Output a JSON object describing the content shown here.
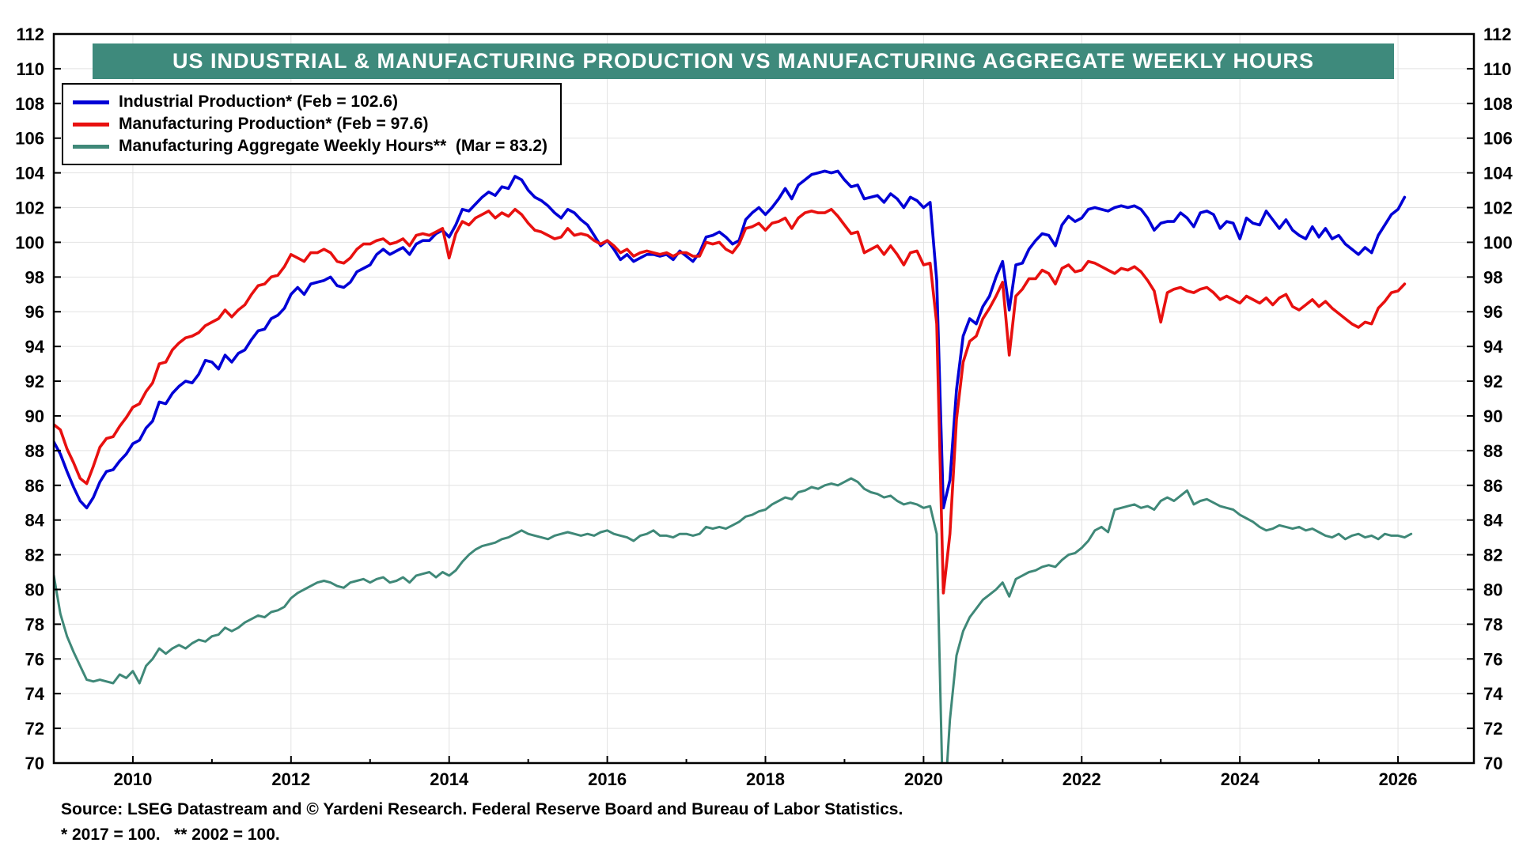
{
  "chart_data": {
    "type": "line",
    "title": "US INDUSTRIAL & MANUFACTURING PRODUCTION VS MANUFACTURING AGGREGATE WEEKLY HOURS",
    "xaxis": {
      "min": 2009.0,
      "max": 2026.96,
      "major_ticks": [
        2010,
        2012,
        2014,
        2016,
        2018,
        2020,
        2022,
        2024,
        2026
      ],
      "minor_step": 1
    },
    "yaxis": {
      "min": 70,
      "max": 112,
      "tick_step": 2
    },
    "grid": {
      "show": true,
      "color": "#e2e2e2"
    },
    "legend_position": "top-left",
    "series": [
      {
        "name": "industrial_production",
        "label": "Industrial Production* (Feb = 102.6)",
        "color": "#0000d6",
        "width": 3.6,
        "start": 2009.0,
        "frequency": "monthly",
        "latest": {
          "period": "Feb",
          "value": 102.6
        },
        "values": [
          88.5,
          87.8,
          86.8,
          85.9,
          85.1,
          84.7,
          85.3,
          86.2,
          86.8,
          86.9,
          87.4,
          87.8,
          88.4,
          88.6,
          89.3,
          89.7,
          90.8,
          90.7,
          91.3,
          91.7,
          92.0,
          91.9,
          92.4,
          93.2,
          93.1,
          92.7,
          93.5,
          93.1,
          93.6,
          93.8,
          94.4,
          94.9,
          95.0,
          95.6,
          95.8,
          96.2,
          97.0,
          97.4,
          97.0,
          97.6,
          97.7,
          97.8,
          98.0,
          97.5,
          97.4,
          97.7,
          98.3,
          98.5,
          98.7,
          99.3,
          99.6,
          99.3,
          99.5,
          99.7,
          99.3,
          99.9,
          100.1,
          100.1,
          100.5,
          100.7,
          100.3,
          101.0,
          101.9,
          101.8,
          102.2,
          102.6,
          102.9,
          102.7,
          103.2,
          103.1,
          103.8,
          103.6,
          103.0,
          102.6,
          102.4,
          102.1,
          101.7,
          101.4,
          101.9,
          101.7,
          101.3,
          101.0,
          100.4,
          99.8,
          100.1,
          99.6,
          99.0,
          99.3,
          98.9,
          99.1,
          99.3,
          99.3,
          99.2,
          99.3,
          99.0,
          99.5,
          99.2,
          98.9,
          99.4,
          100.3,
          100.4,
          100.6,
          100.3,
          99.9,
          100.1,
          101.3,
          101.7,
          102.0,
          101.6,
          102.0,
          102.5,
          103.1,
          102.5,
          103.3,
          103.6,
          103.9,
          104.0,
          104.1,
          104.0,
          104.1,
          103.6,
          103.2,
          103.3,
          102.5,
          102.6,
          102.7,
          102.3,
          102.8,
          102.5,
          102.0,
          102.6,
          102.4,
          102.0,
          102.3,
          97.8,
          84.7,
          86.3,
          91.5,
          94.6,
          95.6,
          95.3,
          96.3,
          96.9,
          98.0,
          98.9,
          96.1,
          98.7,
          98.8,
          99.6,
          100.1,
          100.5,
          100.4,
          99.8,
          101.0,
          101.5,
          101.2,
          101.4,
          101.9,
          102.0,
          101.9,
          101.8,
          102.0,
          102.1,
          102.0,
          102.1,
          101.9,
          101.4,
          100.7,
          101.1,
          101.2,
          101.2,
          101.7,
          101.4,
          100.9,
          101.7,
          101.8,
          101.6,
          100.8,
          101.2,
          101.1,
          100.2,
          101.4,
          101.1,
          101.0,
          101.8,
          101.3,
          100.8,
          101.3,
          100.7,
          100.4,
          100.2,
          100.9,
          100.3,
          100.8,
          100.2,
          100.4,
          99.9,
          99.6,
          99.3,
          99.7,
          99.4,
          100.4,
          101.0,
          101.6,
          101.9,
          102.6
        ]
      },
      {
        "name": "manufacturing_production",
        "label": "Manufacturing Production* (Feb = 97.6)",
        "color": "#e8100f",
        "width": 3.6,
        "start": 2009.0,
        "frequency": "monthly",
        "latest": {
          "period": "Feb",
          "value": 97.6
        },
        "values": [
          89.5,
          89.2,
          88.1,
          87.3,
          86.4,
          86.1,
          87.1,
          88.2,
          88.7,
          88.8,
          89.4,
          89.9,
          90.5,
          90.7,
          91.4,
          91.9,
          93.0,
          93.1,
          93.8,
          94.2,
          94.5,
          94.6,
          94.8,
          95.2,
          95.4,
          95.6,
          96.1,
          95.7,
          96.1,
          96.4,
          97.0,
          97.5,
          97.6,
          98.0,
          98.1,
          98.6,
          99.3,
          99.1,
          98.9,
          99.4,
          99.4,
          99.6,
          99.4,
          98.9,
          98.8,
          99.1,
          99.6,
          99.9,
          99.9,
          100.1,
          100.2,
          99.9,
          100.0,
          100.2,
          99.8,
          100.4,
          100.5,
          100.4,
          100.6,
          100.8,
          99.1,
          100.5,
          101.2,
          101.0,
          101.4,
          101.6,
          101.8,
          101.4,
          101.7,
          101.5,
          101.9,
          101.6,
          101.1,
          100.7,
          100.6,
          100.4,
          100.2,
          100.3,
          100.8,
          100.4,
          100.5,
          100.4,
          100.1,
          99.9,
          100.1,
          99.8,
          99.4,
          99.6,
          99.2,
          99.4,
          99.5,
          99.4,
          99.3,
          99.4,
          99.2,
          99.4,
          99.4,
          99.2,
          99.2,
          100.0,
          99.9,
          100.0,
          99.6,
          99.4,
          99.9,
          100.8,
          100.9,
          101.1,
          100.7,
          101.1,
          101.2,
          101.4,
          100.8,
          101.4,
          101.7,
          101.8,
          101.7,
          101.7,
          101.9,
          101.5,
          101.0,
          100.5,
          100.6,
          99.4,
          99.6,
          99.8,
          99.3,
          99.8,
          99.3,
          98.7,
          99.4,
          99.5,
          98.7,
          98.8,
          95.3,
          79.8,
          83.2,
          89.8,
          93.1,
          94.3,
          94.6,
          95.6,
          96.2,
          96.9,
          97.7,
          93.5,
          96.9,
          97.3,
          97.9,
          97.9,
          98.4,
          98.2,
          97.6,
          98.5,
          98.7,
          98.3,
          98.4,
          98.9,
          98.8,
          98.6,
          98.4,
          98.2,
          98.5,
          98.4,
          98.6,
          98.3,
          97.8,
          97.2,
          95.4,
          97.1,
          97.3,
          97.4,
          97.2,
          97.1,
          97.3,
          97.4,
          97.1,
          96.7,
          96.9,
          96.7,
          96.5,
          96.9,
          96.7,
          96.5,
          96.8,
          96.4,
          96.8,
          97.0,
          96.3,
          96.1,
          96.4,
          96.7,
          96.3,
          96.6,
          96.2,
          95.9,
          95.6,
          95.3,
          95.1,
          95.4,
          95.3,
          96.2,
          96.6,
          97.1,
          97.2,
          97.6
        ]
      },
      {
        "name": "manufacturing_aggregate_weekly_hours",
        "label": "Manufacturing Aggregate Weekly Hours**  (Mar = 83.2)",
        "color": "#3f8878",
        "width": 3.0,
        "start": 2009.0,
        "frequency": "monthly",
        "latest": {
          "period": "Mar",
          "value": 83.2
        },
        "values": [
          80.8,
          78.6,
          77.3,
          76.4,
          75.6,
          74.8,
          74.7,
          74.8,
          74.7,
          74.6,
          75.1,
          74.9,
          75.3,
          74.6,
          75.6,
          76.0,
          76.6,
          76.3,
          76.6,
          76.8,
          76.6,
          76.9,
          77.1,
          77.0,
          77.3,
          77.4,
          77.8,
          77.6,
          77.8,
          78.1,
          78.3,
          78.5,
          78.4,
          78.7,
          78.8,
          79.0,
          79.5,
          79.8,
          80.0,
          80.2,
          80.4,
          80.5,
          80.4,
          80.2,
          80.1,
          80.4,
          80.5,
          80.6,
          80.4,
          80.6,
          80.7,
          80.4,
          80.5,
          80.7,
          80.4,
          80.8,
          80.9,
          81.0,
          80.7,
          81.0,
          80.8,
          81.1,
          81.6,
          82.0,
          82.3,
          82.5,
          82.6,
          82.7,
          82.9,
          83.0,
          83.2,
          83.4,
          83.2,
          83.1,
          83.0,
          82.9,
          83.1,
          83.2,
          83.3,
          83.2,
          83.1,
          83.2,
          83.1,
          83.3,
          83.4,
          83.2,
          83.1,
          83.0,
          82.8,
          83.1,
          83.2,
          83.4,
          83.1,
          83.1,
          83.0,
          83.2,
          83.2,
          83.1,
          83.2,
          83.6,
          83.5,
          83.6,
          83.5,
          83.7,
          83.9,
          84.2,
          84.3,
          84.5,
          84.6,
          84.9,
          85.1,
          85.3,
          85.2,
          85.6,
          85.7,
          85.9,
          85.8,
          86.0,
          86.1,
          86.0,
          86.2,
          86.4,
          86.2,
          85.8,
          85.6,
          85.5,
          85.3,
          85.4,
          85.1,
          84.9,
          85.0,
          84.9,
          84.7,
          84.8,
          83.2,
          66.5,
          72.5,
          76.2,
          77.6,
          78.4,
          78.9,
          79.4,
          79.7,
          80.0,
          80.4,
          79.6,
          80.6,
          80.8,
          81.0,
          81.1,
          81.3,
          81.4,
          81.3,
          81.7,
          82.0,
          82.1,
          82.4,
          82.8,
          83.4,
          83.6,
          83.3,
          84.6,
          84.7,
          84.8,
          84.9,
          84.7,
          84.8,
          84.6,
          85.1,
          85.3,
          85.1,
          85.4,
          85.7,
          84.9,
          85.1,
          85.2,
          85.0,
          84.8,
          84.7,
          84.6,
          84.3,
          84.1,
          83.9,
          83.6,
          83.4,
          83.5,
          83.7,
          83.6,
          83.5,
          83.6,
          83.4,
          83.5,
          83.3,
          83.1,
          83.0,
          83.2,
          82.9,
          83.1,
          83.2,
          83.0,
          83.1,
          82.9,
          83.2,
          83.1,
          83.1,
          83.0,
          83.2
        ]
      }
    ]
  },
  "footer": {
    "source": "Source: LSEG Datastream and © Yardeni Research. Federal Reserve Board and Bureau of Labor Statistics.",
    "footnote": "* 2017 = 100.   ** 2002 = 100."
  }
}
